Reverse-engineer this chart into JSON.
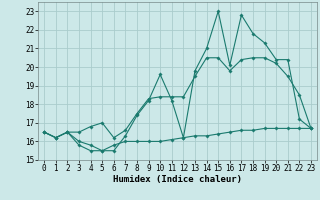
{
  "title": "",
  "xlabel": "Humidex (Indice chaleur)",
  "bg_color": "#cce8e8",
  "grid_color": "#aacccc",
  "line_color": "#1a7a6e",
  "hours": [
    0,
    1,
    2,
    3,
    4,
    5,
    6,
    7,
    8,
    9,
    10,
    11,
    12,
    13,
    14,
    15,
    16,
    17,
    18,
    19,
    20,
    21,
    22,
    23
  ],
  "line_max": [
    16.5,
    16.2,
    16.5,
    15.8,
    15.5,
    15.5,
    15.5,
    16.3,
    17.4,
    18.2,
    19.6,
    18.2,
    16.2,
    19.8,
    21.0,
    23.0,
    20.1,
    22.8,
    21.8,
    21.3,
    20.4,
    20.4,
    17.2,
    16.7
  ],
  "line_mean": [
    16.5,
    16.2,
    16.5,
    16.5,
    16.8,
    17.0,
    16.2,
    16.6,
    17.5,
    18.3,
    18.4,
    18.4,
    18.4,
    19.5,
    20.5,
    20.5,
    19.8,
    20.4,
    20.5,
    20.5,
    20.2,
    19.5,
    18.5,
    16.7
  ],
  "line_min": [
    16.5,
    16.2,
    16.5,
    16.0,
    15.8,
    15.5,
    15.8,
    16.0,
    16.0,
    16.0,
    16.0,
    16.1,
    16.2,
    16.3,
    16.3,
    16.4,
    16.5,
    16.6,
    16.6,
    16.7,
    16.7,
    16.7,
    16.7,
    16.7
  ],
  "xlim": [
    -0.5,
    23.5
  ],
  "ylim": [
    15,
    23.5
  ],
  "yticks": [
    15,
    16,
    17,
    18,
    19,
    20,
    21,
    22,
    23
  ],
  "xticks": [
    0,
    1,
    2,
    3,
    4,
    5,
    6,
    7,
    8,
    9,
    10,
    11,
    12,
    13,
    14,
    15,
    16,
    17,
    18,
    19,
    20,
    21,
    22,
    23
  ],
  "tick_fontsize": 5.5,
  "label_fontsize": 6.5
}
